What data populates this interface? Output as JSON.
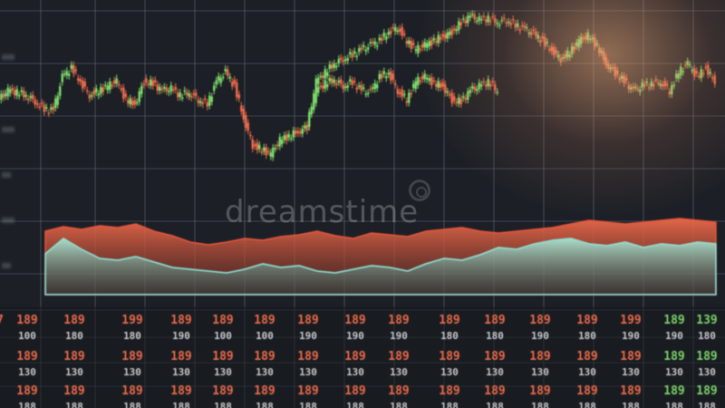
{
  "watermark": "dreamstime",
  "chart_data": {
    "type": "line",
    "colors": {
      "up": "#7edc6a",
      "down": "#ee6a4a",
      "area_red": "#e8553c",
      "area_teal": "#8fe0cf",
      "grid": "#66707c"
    },
    "series": [
      {
        "style": "candlestick",
        "x": [
          0,
          10,
          20,
          30,
          40,
          50,
          60,
          70,
          80,
          90,
          100,
          110,
          120,
          130,
          140,
          150,
          160,
          170,
          180,
          190,
          200,
          210,
          220,
          230,
          240,
          250,
          260,
          270,
          280,
          290,
          300,
          310,
          320,
          330,
          340
        ],
        "values": [
          140,
          150,
          148,
          145,
          138,
          130,
          128,
          165,
          175,
          160,
          145,
          150,
          155,
          160,
          140,
          135,
          160,
          158,
          150,
          152,
          145,
          148,
          140,
          135,
          160,
          170,
          155,
          120,
          90,
          85,
          80,
          95,
          100,
          105,
          110
        ]
      },
      {
        "style": "candlestick",
        "x": [
          340,
          350,
          360,
          370,
          380,
          390,
          400,
          410,
          420,
          430,
          440,
          450,
          460,
          470,
          480,
          490,
          500,
          510,
          520,
          530,
          540,
          550
        ],
        "values": [
          110,
          150,
          158,
          162,
          155,
          160,
          150,
          148,
          165,
          170,
          150,
          140,
          160,
          165,
          158,
          155,
          140,
          138,
          150,
          155,
          160,
          150
        ]
      },
      {
        "style": "candlestick",
        "x": [
          340,
          350,
          360,
          370,
          380,
          390,
          400,
          410,
          420,
          430,
          440,
          450,
          460,
          470,
          480,
          490,
          500,
          510,
          520,
          530,
          540,
          550,
          560,
          570,
          580,
          590,
          600,
          610,
          620,
          630,
          640,
          650,
          660,
          670,
          680,
          690,
          700,
          710,
          720,
          730,
          740,
          750,
          760,
          770,
          780,
          790
        ],
        "values": [
          110,
          160,
          170,
          180,
          185,
          190,
          195,
          200,
          205,
          215,
          220,
          205,
          195,
          200,
          205,
          210,
          215,
          225,
          232,
          228,
          230,
          226,
          228,
          222,
          218,
          212,
          205,
          195,
          185,
          192,
          205,
          210,
          200,
          180,
          170,
          160,
          150,
          155,
          158,
          160,
          150,
          170,
          180,
          165,
          175,
          160
        ]
      },
      {
        "style": "area",
        "x": [
          50,
          70,
          90,
          110,
          130,
          150,
          170,
          190,
          210,
          230,
          250,
          270,
          290,
          310,
          330,
          350,
          370,
          390,
          410,
          430,
          450,
          470,
          490,
          510,
          530,
          550,
          570,
          590,
          610,
          630,
          650,
          670,
          690,
          710,
          730,
          750,
          770,
          790
        ],
        "values": [
          70,
          75,
          72,
          76,
          74,
          78,
          70,
          65,
          58,
          55,
          58,
          62,
          60,
          64,
          66,
          70,
          65,
          62,
          68,
          66,
          64,
          70,
          72,
          74,
          70,
          68,
          70,
          72,
          74,
          78,
          82,
          80,
          78,
          80,
          82,
          84,
          82,
          80
        ]
      },
      {
        "style": "area",
        "x": [
          50,
          70,
          90,
          110,
          130,
          150,
          170,
          190,
          210,
          230,
          250,
          270,
          290,
          310,
          330,
          350,
          370,
          390,
          410,
          430,
          450,
          470,
          490,
          510,
          530,
          550,
          570,
          590,
          610,
          630,
          650,
          670,
          690,
          710,
          730,
          750,
          770,
          790
        ],
        "values": [
          45,
          62,
          50,
          40,
          38,
          42,
          36,
          30,
          28,
          26,
          24,
          28,
          34,
          30,
          32,
          26,
          24,
          28,
          32,
          30,
          26,
          34,
          40,
          38,
          44,
          52,
          50,
          56,
          60,
          62,
          56,
          54,
          58,
          52,
          56,
          54,
          58,
          56
        ]
      }
    ]
  },
  "table": {
    "rows": [
      [
        "7",
        "189",
        "189",
        "199",
        "189",
        "189",
        "189",
        "189",
        "189",
        "189",
        "189",
        "189",
        "189",
        "189",
        "199",
        "189",
        "139"
      ],
      [
        "",
        "100",
        "180",
        "180",
        "190",
        "100",
        "100",
        "190",
        "190",
        "190",
        "180",
        "180",
        "190",
        "180",
        "190",
        "190",
        "180"
      ],
      [
        "",
        "189",
        "189",
        "189",
        "189",
        "189",
        "189",
        "189",
        "189",
        "189",
        "189",
        "189",
        "189",
        "189",
        "189",
        "189",
        "189"
      ],
      [
        "",
        "130",
        "130",
        "130",
        "130",
        "130",
        "130",
        "130",
        "130",
        "130",
        "130",
        "130",
        "130",
        "130",
        "130",
        "130",
        "130"
      ],
      [
        "",
        "189",
        "189",
        "189",
        "189",
        "189",
        "189",
        "189",
        "189",
        "189",
        "189",
        "189",
        "189",
        "189",
        "189",
        "189",
        "189"
      ],
      [
        "",
        "188",
        "188",
        "188",
        "188",
        "188",
        "188",
        "188",
        "188",
        "188",
        "188",
        "188",
        "188",
        "188",
        "188",
        "188",
        "188"
      ]
    ]
  }
}
